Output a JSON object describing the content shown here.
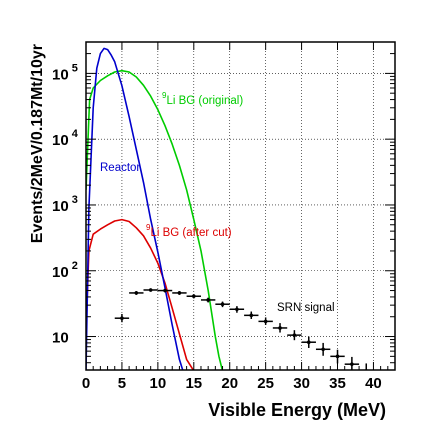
{
  "chart_data": {
    "type": "line",
    "title": "",
    "xlabel": "Visible Energy (MeV)",
    "ylabel": "Events/2MeV/0.187Mt/10yr",
    "xlim": [
      0,
      43
    ],
    "ylim": [
      3.1,
      300000
    ],
    "yscale": "log",
    "grid": true,
    "x_ticks": [
      0,
      5,
      10,
      15,
      20,
      25,
      30,
      35,
      40
    ],
    "x_tick_labels": [
      "0",
      "5",
      "10",
      "15",
      "20",
      "25",
      "30",
      "35",
      "40"
    ],
    "y_ticks": [
      10,
      100,
      1000,
      10000,
      100000
    ],
    "y_tick_labels": [
      {
        "base": "10",
        "exp": ""
      },
      {
        "base": "10",
        "exp": "2"
      },
      {
        "base": "10",
        "exp": "3"
      },
      {
        "base": "10",
        "exp": "4"
      },
      {
        "base": "10",
        "exp": "5"
      }
    ],
    "series": [
      {
        "color": "#00cc00",
        "x": [
          0,
          0.5,
          1,
          2,
          3,
          4,
          5,
          6,
          7,
          8,
          9,
          10,
          11,
          12,
          13,
          14,
          15,
          16,
          17,
          18,
          18.5,
          19
        ],
        "y": [
          1700,
          40000,
          60000,
          78000,
          92000,
          105000,
          110000,
          105000,
          88000,
          66000,
          45000,
          28000,
          16000,
          8400,
          4000,
          1700,
          600,
          200,
          50,
          10,
          5,
          3
        ]
      },
      {
        "color": "#dd0000",
        "x": [
          0,
          0.4,
          1,
          2,
          3,
          4,
          5,
          6,
          7,
          8,
          9,
          10,
          11,
          12,
          13,
          14,
          15,
          16
        ],
        "y": [
          12,
          200,
          360,
          430,
          500,
          570,
          600,
          560,
          450,
          340,
          220,
          130,
          65,
          27,
          11,
          4.5,
          3,
          2
        ]
      },
      {
        "color": "#0000cc",
        "x": [
          0,
          0.4,
          1,
          1.5,
          2,
          2.5,
          3,
          3.5,
          4,
          5,
          6,
          7,
          8,
          9,
          10,
          11,
          12,
          13,
          14
        ],
        "y": [
          3,
          900,
          30000,
          120000,
          200000,
          240000,
          230000,
          190000,
          150000,
          65000,
          22000,
          7000,
          2200,
          600,
          190,
          55,
          15,
          4.5,
          2
        ]
      }
    ],
    "signal_points": [
      {
        "x": 5,
        "y": 19,
        "xerr": 1,
        "ylo": 16.5,
        "yhi": 22
      },
      {
        "x": 7,
        "y": 46,
        "xerr": 1,
        "ylo": 43,
        "yhi": 49
      },
      {
        "x": 9,
        "y": 51,
        "xerr": 1,
        "ylo": 48,
        "yhi": 54
      },
      {
        "x": 11,
        "y": 50,
        "xerr": 1,
        "ylo": 47,
        "yhi": 53
      },
      {
        "x": 13,
        "y": 46,
        "xerr": 1,
        "ylo": 43,
        "yhi": 49
      },
      {
        "x": 15,
        "y": 41,
        "xerr": 1,
        "ylo": 38,
        "yhi": 44
      },
      {
        "x": 17,
        "y": 36,
        "xerr": 1,
        "ylo": 33,
        "yhi": 39
      },
      {
        "x": 19,
        "y": 31,
        "xerr": 1,
        "ylo": 28,
        "yhi": 34
      },
      {
        "x": 21,
        "y": 26,
        "xerr": 1,
        "ylo": 23,
        "yhi": 29
      },
      {
        "x": 23,
        "y": 21,
        "xerr": 1,
        "ylo": 18.5,
        "yhi": 24
      },
      {
        "x": 25,
        "y": 17,
        "xerr": 1,
        "ylo": 15,
        "yhi": 19.5
      },
      {
        "x": 27,
        "y": 13.5,
        "xerr": 1,
        "ylo": 11.5,
        "yhi": 16
      },
      {
        "x": 29,
        "y": 10.5,
        "xerr": 1,
        "ylo": 8.8,
        "yhi": 12.5
      },
      {
        "x": 31,
        "y": 8.2,
        "xerr": 1,
        "ylo": 6.7,
        "yhi": 10
      },
      {
        "x": 33,
        "y": 6.4,
        "xerr": 1,
        "ylo": 5.1,
        "yhi": 8
      },
      {
        "x": 35,
        "y": 5,
        "xerr": 1,
        "ylo": 3.9,
        "yhi": 6.3
      },
      {
        "x": 37,
        "y": 3.8,
        "xerr": 1,
        "ylo": 2.9,
        "yhi": 4.9
      },
      {
        "x": 39,
        "y": 3,
        "xerr": 1,
        "ylo": 2.2,
        "yhi": 3.9
      }
    ],
    "annotations": [
      {
        "id": "li-orig",
        "sup": "9",
        "text": "Li BG (original)",
        "color": "#00cc00"
      },
      {
        "id": "reactor",
        "sup": "",
        "text": "Reactor",
        "color": "#0000cc"
      },
      {
        "id": "li-cut",
        "sup": "9",
        "text": "Li BG (after cut)",
        "color": "#dd0000"
      },
      {
        "id": "srn",
        "sup": "",
        "text": "SRN signal",
        "color": "#000000"
      }
    ]
  }
}
